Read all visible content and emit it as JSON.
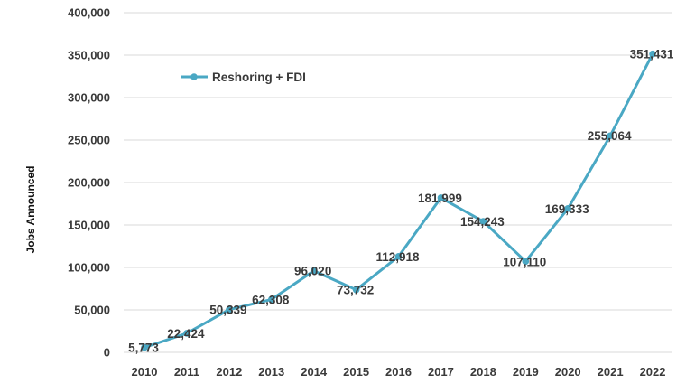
{
  "chart_data": {
    "type": "line",
    "title": "",
    "xlabel": "",
    "ylabel": "Jobs Announced",
    "x": [
      "2010",
      "2011",
      "2012",
      "2013",
      "2014",
      "2015",
      "2016",
      "2017",
      "2018",
      "2019",
      "2020",
      "2021",
      "2022"
    ],
    "series": [
      {
        "name": "Reshoring + FDI",
        "color": "#4aa8c4",
        "values": [
          5773,
          22424,
          50339,
          62308,
          96020,
          73732,
          112918,
          181999,
          154243,
          107110,
          169333,
          255064,
          351431
        ],
        "labels": [
          "5,773",
          "22,424",
          "50,339",
          "62,308",
          "96,020",
          "73,732",
          "112,918",
          "181,999",
          "154,243",
          "107,110",
          "169,333",
          "255,064",
          "351,431"
        ]
      }
    ],
    "ylim": [
      0,
      400000
    ],
    "yticks": [
      0,
      50000,
      100000,
      150000,
      200000,
      250000,
      300000,
      350000,
      400000
    ],
    "ytick_labels": [
      "0",
      "50,000",
      "100,000",
      "150,000",
      "200,000",
      "250,000",
      "300,000",
      "350,000",
      "400,000"
    ],
    "grid": "horizontal",
    "legend": "upper-left inside plot",
    "gridline_color": "#d9d9d9"
  }
}
